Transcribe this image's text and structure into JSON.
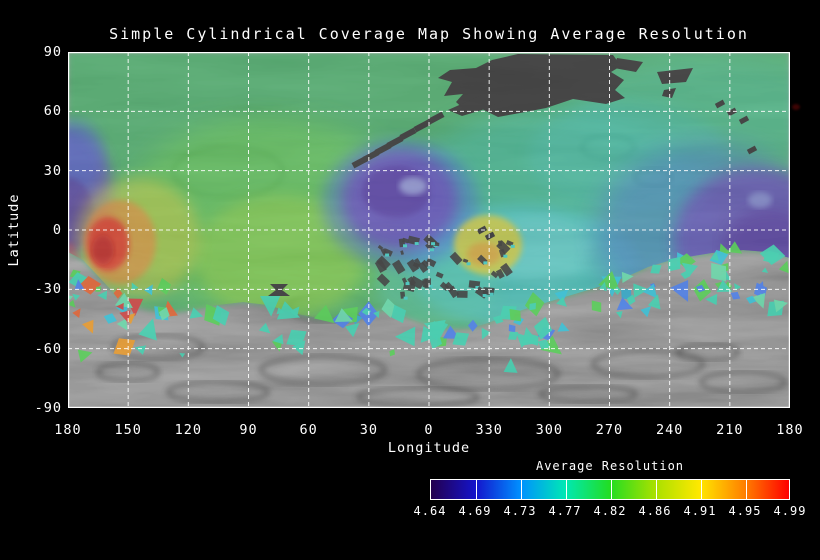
{
  "title": "Simple Cylindrical Coverage Map Showing Average Resolution",
  "x_axis": {
    "label": "Longitude",
    "ticks": [
      "180",
      "150",
      "120",
      "90",
      "60",
      "30",
      "0",
      "330",
      "300",
      "270",
      "240",
      "210",
      "180"
    ]
  },
  "y_axis": {
    "label": "Latitude",
    "ticks": [
      "90",
      "60",
      "30",
      "0",
      "-30",
      "-60",
      "-90"
    ]
  },
  "colorbar": {
    "title": "Average Resolution",
    "tick_labels": [
      "4.64",
      "4.69",
      "4.73",
      "4.77",
      "4.82",
      "4.86",
      "4.91",
      "4.95",
      "4.99"
    ],
    "gradient": [
      "#24004e",
      "#1414cc",
      "#0090ff",
      "#00e8b4",
      "#22dd22",
      "#a8e000",
      "#ffe800",
      "#ff8000",
      "#ff0000"
    ]
  },
  "chart_data": {
    "type": "heatmap",
    "title": "Simple Cylindrical Coverage Map Showing Average Resolution",
    "xlabel": "Longitude",
    "ylabel": "Latitude",
    "x_ticks_deg": [
      180,
      150,
      120,
      90,
      60,
      30,
      0,
      330,
      300,
      270,
      240,
      210,
      180
    ],
    "y_ticks_deg": [
      90,
      60,
      30,
      0,
      -30,
      -60,
      -90
    ],
    "xlim_note": "longitude wraps 180 -> 0 -> 180 (degrees, decreasing eastward labels)",
    "ylim": [
      -90,
      90
    ],
    "grid": "white dashed lines every 30 degrees",
    "value_name": "Average Resolution",
    "value_range": [
      4.64,
      4.99
    ],
    "colorbar_ticks": [
      4.64,
      4.69,
      4.73,
      4.77,
      4.82,
      4.86,
      4.91,
      4.95,
      4.99
    ],
    "regions": [
      {
        "feature": "main coverage field",
        "value_approx": 4.82,
        "color": "green",
        "extent": "lat 90 to -30 across nearly all longitudes"
      },
      {
        "feature": "no-coverage gap (north)",
        "value_approx": null,
        "color": "dark gray terrain",
        "extent": "lat ~55..90, lon ~25..315 around the 0/330 meridians"
      },
      {
        "feature": "low-resolution patch west edge",
        "value_approx": 4.65,
        "color": "purple/blue",
        "extent": "lon ~180, lat 25..-20"
      },
      {
        "feature": "highest-resolution spot",
        "value_approx": 4.99,
        "color": "red/orange/yellow fan",
        "extent": "lon ~160, lat 0..-15"
      },
      {
        "feature": "low-resolution patch",
        "value_approx": 4.66,
        "color": "purple/blue",
        "extent": "lon ~340..325, lat 25..-10"
      },
      {
        "feature": "high-resolution patch",
        "value_approx": 4.91,
        "color": "yellow",
        "extent": "lon ~315..305, lat -5..-20"
      },
      {
        "feature": "low-resolution patch east",
        "value_approx": 4.66,
        "color": "purple/blue",
        "extent": "lon ~235..200, lat 15..-25"
      },
      {
        "feature": "mid-resolution basin",
        "value_approx": 4.77,
        "color": "cyan/teal",
        "extent": "lon ~340..270, lat -5..-40"
      },
      {
        "feature": "scattered image footprints",
        "value_approx": 4.8,
        "color": "small cyan/green triangles",
        "extent": "lat -25..-65, all longitudes, over gray terrain"
      },
      {
        "feature": "no-coverage zone (south)",
        "value_approx": null,
        "color": "gray terrain",
        "extent": "lat ~-60..-90"
      }
    ]
  }
}
